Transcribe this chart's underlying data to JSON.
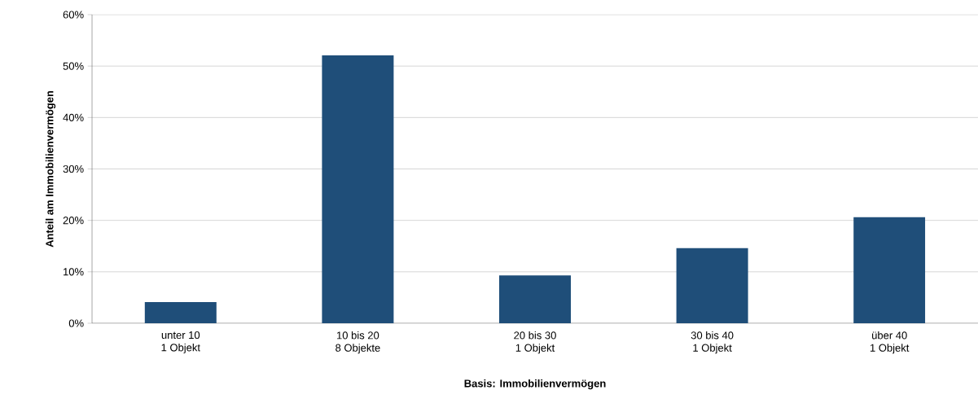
{
  "chart_data": {
    "type": "bar",
    "xlabel": "Basis: Immobilienvermögen",
    "ylabel": "Anteil am Immobilienvermögen",
    "categories": [
      "unter 10\n1 Objekt",
      "10 bis 20\n8 Objekte",
      "20 bis 30\n1 Objekt",
      "30 bis 40\n1 Objekt",
      "über 40\n1 Objekt"
    ],
    "values": [
      4.1,
      52.1,
      9.3,
      14.6,
      20.6
    ],
    "color": "#1f4e79",
    "ylim": [
      0,
      60
    ],
    "yticks": [
      {
        "value": 0,
        "label": "0%"
      },
      {
        "value": 10,
        "label": "10%"
      },
      {
        "value": 20,
        "label": "20%"
      },
      {
        "value": 30,
        "label": "30%"
      },
      {
        "value": 40,
        "label": "40%"
      },
      {
        "value": 50,
        "label": "50%"
      },
      {
        "value": 60,
        "label": "60%"
      }
    ],
    "grid": "y"
  }
}
